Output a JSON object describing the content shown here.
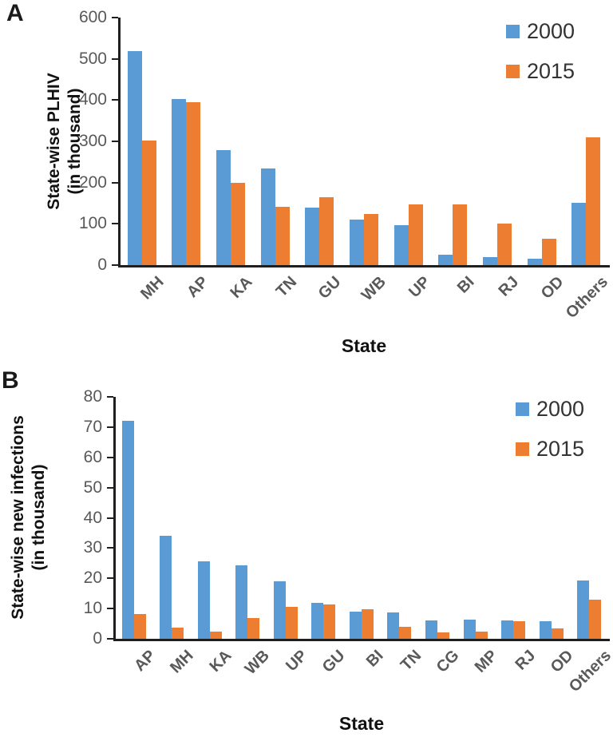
{
  "colors": {
    "series_2000": "#5B9BD5",
    "series_2015": "#ED7D31",
    "axis_line": "#1f1f1f",
    "tick_label": "#595959",
    "legend_text": "#333333",
    "title_text": "#111111"
  },
  "chart_data": [
    {
      "type": "bar",
      "panel_label": "A",
      "title": "",
      "xlabel": "State",
      "ylabel": "State-wise PLHIV (in thousand)",
      "ylabel_lines": [
        "State-wise PLHIV",
        "(in thousand)"
      ],
      "categories": [
        "MH",
        "AP",
        "KA",
        "TN",
        "GU",
        "WB",
        "UP",
        "BI",
        "RJ",
        "OD",
        "Others"
      ],
      "series": [
        {
          "name": "2000",
          "color": "#5B9BD5",
          "values": [
            518,
            403,
            278,
            235,
            139,
            110,
            96,
            25,
            20,
            16,
            151
          ]
        },
        {
          "name": "2015",
          "color": "#ED7D31",
          "values": [
            302,
            394,
            199,
            141,
            165,
            124,
            148,
            148,
            100,
            64,
            309
          ]
        }
      ],
      "ylim": [
        0,
        600
      ],
      "ytick_step": 100,
      "grid": false,
      "legend_position": "top-right"
    },
    {
      "type": "bar",
      "panel_label": "B",
      "title": "",
      "xlabel": "State",
      "ylabel": "State-wise new infections (in thousand)",
      "ylabel_lines": [
        "State-wise new infections",
        "(in thousand)"
      ],
      "categories": [
        "AP",
        "MH",
        "KA",
        "WB",
        "UP",
        "GU",
        "BI",
        "TN",
        "CG",
        "MP",
        "RJ",
        "OD",
        "Others"
      ],
      "series": [
        {
          "name": "2000",
          "color": "#5B9BD5",
          "values": [
            72,
            34,
            25.5,
            24.3,
            19,
            12,
            9,
            8.7,
            6.1,
            6.4,
            6.2,
            5.7,
            19.3
          ]
        },
        {
          "name": "2015",
          "color": "#ED7D31",
          "values": [
            8.1,
            3.8,
            2.5,
            6.8,
            10.5,
            11.4,
            9.9,
            3.9,
            2.2,
            2.3,
            5.9,
            3.4,
            13
          ]
        }
      ],
      "ylim": [
        0,
        80
      ],
      "ytick_step": 10,
      "grid": false,
      "legend_position": "top-right"
    }
  ]
}
